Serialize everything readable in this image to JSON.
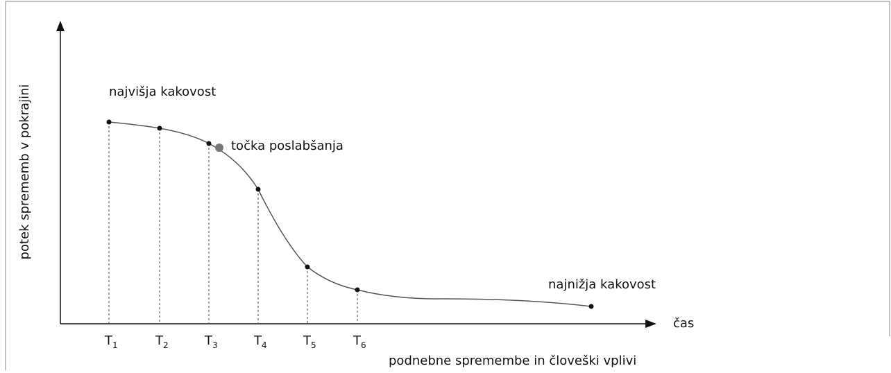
{
  "y_axis_label": "potek sprememb v pokrajini",
  "x_axis_label": "čas",
  "x_axis_caption": "podnebne spremembe in človeški vplivi",
  "annotations": {
    "highest": "najvišja kakovost",
    "turning_point": "točka poslabšanja",
    "lowest": "najnižja kakovost"
  },
  "time_marks": [
    {
      "base": "T",
      "sub": "1"
    },
    {
      "base": "T",
      "sub": "2"
    },
    {
      "base": "T",
      "sub": "3"
    },
    {
      "base": "T",
      "sub": "4"
    },
    {
      "base": "T",
      "sub": "5"
    },
    {
      "base": "T",
      "sub": "6"
    }
  ]
}
